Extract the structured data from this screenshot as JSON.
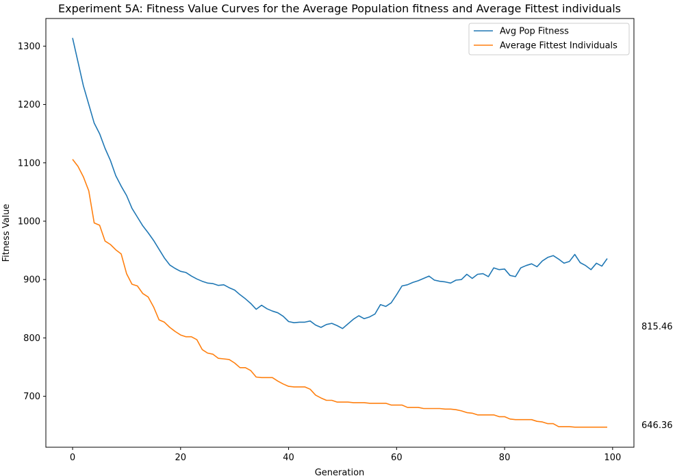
{
  "chart_data": {
    "type": "line",
    "title": "Experiment 5A: Fitness Value Curves for the Average Population fitness and Average Fittest individuals",
    "xlabel": "Generation",
    "ylabel": "Fitness Value",
    "xlim": [
      -4.95,
      103.95
    ],
    "ylim": [
      1.0,
      0
    ],
    "grid": false,
    "legend_position": "top-right",
    "x": [
      0,
      1,
      2,
      3,
      4,
      5,
      6,
      7,
      8,
      9,
      10,
      11,
      12,
      13,
      14,
      15,
      16,
      17,
      18,
      19,
      20,
      21,
      22,
      23,
      24,
      25,
      26,
      27,
      28,
      29,
      30,
      31,
      32,
      33,
      34,
      35,
      36,
      37,
      38,
      39,
      40,
      41,
      42,
      43,
      44,
      45,
      46,
      47,
      48,
      49,
      50,
      51,
      52,
      53,
      54,
      55,
      56,
      57,
      58,
      59,
      60,
      61,
      62,
      63,
      64,
      65,
      66,
      67,
      68,
      69,
      70,
      71,
      72,
      73,
      74,
      75,
      76,
      77,
      78,
      79,
      80,
      81,
      82,
      83,
      84,
      85,
      86,
      87,
      88,
      89,
      90,
      91,
      92,
      93,
      94,
      95,
      96,
      97,
      98,
      99
    ],
    "series": [
      {
        "name": "Avg Pop Fitness",
        "color": "#1f77b4",
        "values": [
          1314,
          1273,
          1232,
          1200,
          1168,
          1150,
          1125,
          1104,
          1078,
          1060,
          1044,
          1022,
          1007,
          992,
          980,
          967,
          952,
          937,
          925,
          919,
          914,
          912,
          906,
          901,
          897,
          894,
          893,
          890,
          891,
          886,
          882,
          874,
          867,
          859,
          849,
          856,
          850,
          846,
          843,
          837,
          828,
          826,
          827,
          827,
          829,
          822,
          818,
          823,
          825,
          821,
          816,
          824,
          832,
          838,
          833,
          836,
          841,
          857,
          854,
          860,
          874,
          889,
          891,
          895,
          898,
          902,
          906,
          899,
          897,
          896,
          894,
          899,
          900,
          909,
          902,
          909,
          910,
          905,
          920,
          917,
          918,
          907,
          905,
          920,
          924,
          927,
          922,
          932,
          938,
          941,
          935,
          928,
          931,
          943,
          929,
          924,
          917,
          928,
          923,
          936
        ]
      },
      {
        "name": "Average Fittest Individuals",
        "color": "#ff7f0e",
        "values": [
          1106,
          1094,
          1076,
          1052,
          997,
          993,
          966,
          960,
          951,
          944,
          910,
          892,
          889,
          876,
          870,
          853,
          831,
          827,
          818,
          811,
          805,
          802,
          802,
          797,
          780,
          774,
          772,
          765,
          764,
          763,
          757,
          749,
          749,
          744,
          733,
          732,
          732,
          732,
          726,
          721,
          717,
          716,
          716,
          716,
          712,
          702,
          697,
          693,
          693,
          690,
          690,
          690,
          689,
          689,
          689,
          688,
          688,
          688,
          688,
          685,
          685,
          685,
          681,
          681,
          681,
          679,
          679,
          679,
          679,
          678,
          678,
          677,
          675,
          672,
          671,
          668,
          668,
          668,
          668,
          665,
          665,
          661,
          660,
          660,
          660,
          660,
          657,
          656,
          653,
          653,
          648,
          648,
          648,
          647,
          647,
          647,
          647,
          647,
          647,
          647
        ]
      }
    ],
    "annotations": [
      {
        "text": "815.46"
      },
      {
        "text": "646.36"
      }
    ]
  }
}
